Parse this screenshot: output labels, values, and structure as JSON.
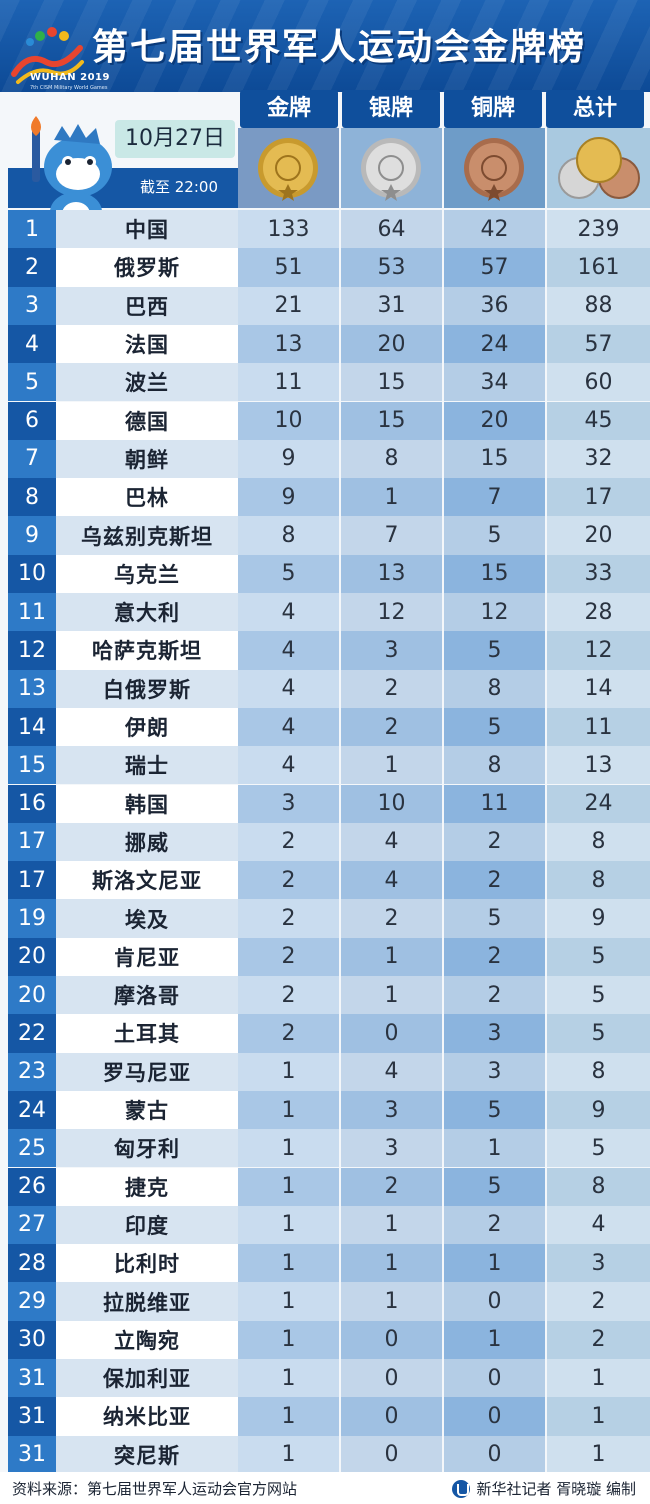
{
  "header": {
    "title": "第七届世界军人运动会金牌榜",
    "logo_text": "WUHAN 2019",
    "logo_sub": "7th CISM Military World Games"
  },
  "columns": {
    "gold": "金牌",
    "silver": "银牌",
    "bronze": "铜牌",
    "total": "总计"
  },
  "date": "10月27日",
  "cutoff": "截至 22:00",
  "colors": {
    "rank_dark": "#1557a5",
    "rank_light": "#2e7ac7",
    "gold": "#d9a93a",
    "silver": "#c9c9c9",
    "bronze": "#b87b5a"
  },
  "rows": [
    {
      "rank": "1",
      "country": "中国",
      "gold": "133",
      "silver": "64",
      "bronze": "42",
      "total": "239"
    },
    {
      "rank": "2",
      "country": "俄罗斯",
      "gold": "51",
      "silver": "53",
      "bronze": "57",
      "total": "161"
    },
    {
      "rank": "3",
      "country": "巴西",
      "gold": "21",
      "silver": "31",
      "bronze": "36",
      "total": "88"
    },
    {
      "rank": "4",
      "country": "法国",
      "gold": "13",
      "silver": "20",
      "bronze": "24",
      "total": "57"
    },
    {
      "rank": "5",
      "country": "波兰",
      "gold": "11",
      "silver": "15",
      "bronze": "34",
      "total": "60"
    },
    {
      "rank": "6",
      "country": "德国",
      "gold": "10",
      "silver": "15",
      "bronze": "20",
      "total": "45"
    },
    {
      "rank": "7",
      "country": "朝鲜",
      "gold": "9",
      "silver": "8",
      "bronze": "15",
      "total": "32"
    },
    {
      "rank": "8",
      "country": "巴林",
      "gold": "9",
      "silver": "1",
      "bronze": "7",
      "total": "17"
    },
    {
      "rank": "9",
      "country": "乌兹别克斯坦",
      "gold": "8",
      "silver": "7",
      "bronze": "5",
      "total": "20"
    },
    {
      "rank": "10",
      "country": "乌克兰",
      "gold": "5",
      "silver": "13",
      "bronze": "15",
      "total": "33"
    },
    {
      "rank": "11",
      "country": "意大利",
      "gold": "4",
      "silver": "12",
      "bronze": "12",
      "total": "28"
    },
    {
      "rank": "12",
      "country": "哈萨克斯坦",
      "gold": "4",
      "silver": "3",
      "bronze": "5",
      "total": "12"
    },
    {
      "rank": "13",
      "country": "白俄罗斯",
      "gold": "4",
      "silver": "2",
      "bronze": "8",
      "total": "14"
    },
    {
      "rank": "14",
      "country": "伊朗",
      "gold": "4",
      "silver": "2",
      "bronze": "5",
      "total": "11"
    },
    {
      "rank": "15",
      "country": "瑞士",
      "gold": "4",
      "silver": "1",
      "bronze": "8",
      "total": "13"
    },
    {
      "rank": "16",
      "country": "韩国",
      "gold": "3",
      "silver": "10",
      "bronze": "11",
      "total": "24"
    },
    {
      "rank": "17",
      "country": "挪威",
      "gold": "2",
      "silver": "4",
      "bronze": "2",
      "total": "8"
    },
    {
      "rank": "17",
      "country": "斯洛文尼亚",
      "gold": "2",
      "silver": "4",
      "bronze": "2",
      "total": "8"
    },
    {
      "rank": "19",
      "country": "埃及",
      "gold": "2",
      "silver": "2",
      "bronze": "5",
      "total": "9"
    },
    {
      "rank": "20",
      "country": "肯尼亚",
      "gold": "2",
      "silver": "1",
      "bronze": "2",
      "total": "5"
    },
    {
      "rank": "20",
      "country": "摩洛哥",
      "gold": "2",
      "silver": "1",
      "bronze": "2",
      "total": "5"
    },
    {
      "rank": "22",
      "country": "土耳其",
      "gold": "2",
      "silver": "0",
      "bronze": "3",
      "total": "5"
    },
    {
      "rank": "23",
      "country": "罗马尼亚",
      "gold": "1",
      "silver": "4",
      "bronze": "3",
      "total": "8"
    },
    {
      "rank": "24",
      "country": "蒙古",
      "gold": "1",
      "silver": "3",
      "bronze": "5",
      "total": "9"
    },
    {
      "rank": "25",
      "country": "匈牙利",
      "gold": "1",
      "silver": "3",
      "bronze": "1",
      "total": "5"
    },
    {
      "rank": "26",
      "country": "捷克",
      "gold": "1",
      "silver": "2",
      "bronze": "5",
      "total": "8"
    },
    {
      "rank": "27",
      "country": "印度",
      "gold": "1",
      "silver": "1",
      "bronze": "2",
      "total": "4"
    },
    {
      "rank": "28",
      "country": "比利时",
      "gold": "1",
      "silver": "1",
      "bronze": "1",
      "total": "3"
    },
    {
      "rank": "29",
      "country": "拉脱维亚",
      "gold": "1",
      "silver": "1",
      "bronze": "0",
      "total": "2"
    },
    {
      "rank": "30",
      "country": "立陶宛",
      "gold": "1",
      "silver": "0",
      "bronze": "1",
      "total": "2"
    },
    {
      "rank": "31",
      "country": "保加利亚",
      "gold": "1",
      "silver": "0",
      "bronze": "0",
      "total": "1"
    },
    {
      "rank": "31",
      "country": "纳米比亚",
      "gold": "1",
      "silver": "0",
      "bronze": "0",
      "total": "1"
    },
    {
      "rank": "31",
      "country": "突尼斯",
      "gold": "1",
      "silver": "0",
      "bronze": "0",
      "total": "1"
    }
  ],
  "footer": {
    "source": "资料来源：第七届世界军人运动会官方网站",
    "credit": "新华社记者 胥晓璇 编制"
  }
}
